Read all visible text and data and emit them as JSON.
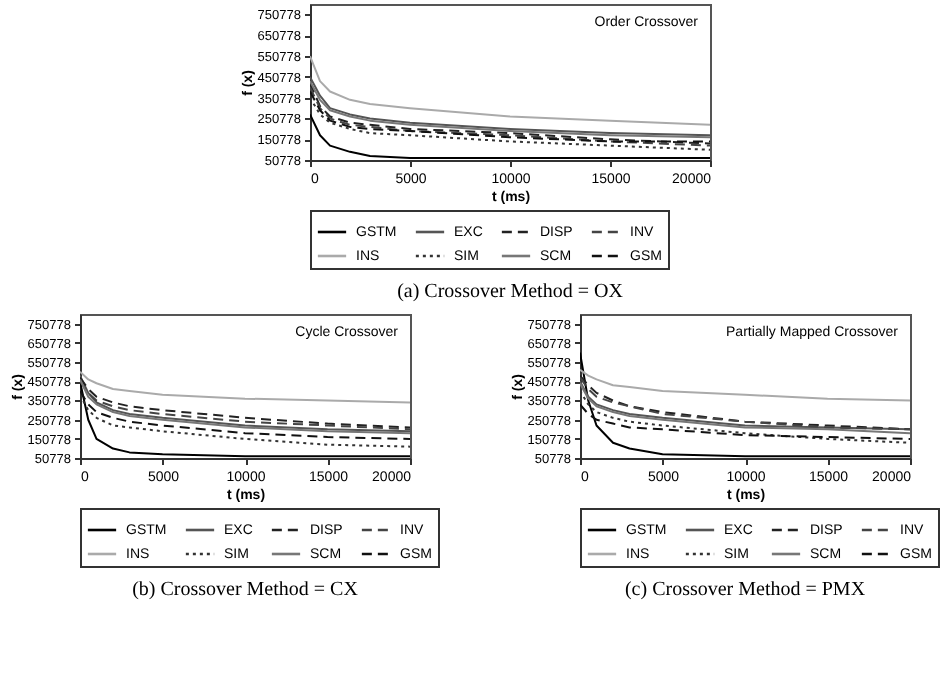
{
  "chart_data": [
    {
      "type": "line",
      "title": "(a) Crossover Method = OX",
      "xlabel": "t (ms)",
      "ylabel": "f (x)",
      "annotations": [
        "Order Crossover"
      ],
      "legend": "bottom",
      "grid": false,
      "marker": "none",
      "x": [
        0,
        500,
        1000,
        2000,
        3000,
        5000,
        10000,
        15000,
        20000
      ],
      "xlim": [
        0,
        20000
      ],
      "xticks": [
        0,
        5000,
        10000,
        15000,
        20000
      ],
      "ylim": [
        50778,
        800778
      ],
      "yticks": [
        50778,
        150778,
        250778,
        350778,
        450778,
        550778,
        650778,
        750778
      ],
      "series": [
        {
          "name": "GSTM",
          "color": "#000000",
          "line_style": "solid",
          "values": [
            270000,
            170000,
            120000,
            90000,
            70000,
            60000,
            60000,
            60000,
            60000
          ]
        },
        {
          "name": "EXC",
          "color": "#555555",
          "line_style": "solid",
          "values": [
            450000,
            360000,
            300000,
            270000,
            250000,
            230000,
            200000,
            180000,
            170000
          ]
        },
        {
          "name": "DISP",
          "color": "#222222",
          "line_style": "dashed",
          "values": [
            420000,
            310000,
            260000,
            230000,
            220000,
            200000,
            180000,
            150000,
            130000
          ]
        },
        {
          "name": "INV",
          "color": "#444444",
          "line_style": "dashed",
          "values": [
            400000,
            300000,
            250000,
            220000,
            210000,
            190000,
            170000,
            140000,
            120000
          ]
        },
        {
          "name": "INS",
          "color": "#aaaaaa",
          "line_style": "solid",
          "values": [
            550000,
            430000,
            380000,
            340000,
            320000,
            300000,
            260000,
            240000,
            220000
          ]
        },
        {
          "name": "SIM",
          "color": "#333333",
          "line_style": "dotted",
          "values": [
            350000,
            270000,
            230000,
            200000,
            180000,
            170000,
            140000,
            120000,
            100000
          ]
        },
        {
          "name": "SCM",
          "color": "#777777",
          "line_style": "solid",
          "values": [
            430000,
            340000,
            290000,
            260000,
            240000,
            220000,
            190000,
            170000,
            160000
          ]
        },
        {
          "name": "GSM",
          "color": "#111111",
          "line_style": "dashed",
          "values": [
            380000,
            290000,
            240000,
            210000,
            200000,
            190000,
            160000,
            140000,
            140000
          ]
        }
      ]
    },
    {
      "type": "line",
      "title": "(b) Crossover Method = CX",
      "xlabel": "t (ms)",
      "ylabel": "f (x)",
      "annotations": [
        "Cycle Crossover"
      ],
      "legend": "bottom",
      "grid": false,
      "marker": "none",
      "x": [
        0,
        500,
        1000,
        2000,
        3000,
        5000,
        10000,
        15000,
        20000
      ],
      "xlim": [
        0,
        20000
      ],
      "xticks": [
        0,
        5000,
        10000,
        15000,
        20000
      ],
      "ylim": [
        50778,
        800778
      ],
      "yticks": [
        50778,
        150778,
        250778,
        350778,
        450778,
        550778,
        650778,
        750778
      ],
      "series": [
        {
          "name": "GSTM",
          "color": "#000000",
          "line_style": "solid",
          "values": [
            450000,
            250000,
            150000,
            100000,
            80000,
            70000,
            60000,
            60000,
            60000
          ]
        },
        {
          "name": "EXC",
          "color": "#555555",
          "line_style": "solid",
          "values": [
            480000,
            390000,
            340000,
            300000,
            280000,
            260000,
            220000,
            200000,
            190000
          ]
        },
        {
          "name": "DISP",
          "color": "#222222",
          "line_style": "dashed",
          "values": [
            470000,
            410000,
            370000,
            340000,
            320000,
            300000,
            260000,
            230000,
            210000
          ]
        },
        {
          "name": "INV",
          "color": "#444444",
          "line_style": "dashed",
          "values": [
            450000,
            390000,
            350000,
            320000,
            300000,
            280000,
            240000,
            220000,
            200000
          ]
        },
        {
          "name": "INS",
          "color": "#aaaaaa",
          "line_style": "solid",
          "values": [
            500000,
            460000,
            440000,
            410000,
            400000,
            380000,
            360000,
            350000,
            340000
          ]
        },
        {
          "name": "SIM",
          "color": "#333333",
          "line_style": "dotted",
          "values": [
            380000,
            300000,
            260000,
            220000,
            210000,
            190000,
            150000,
            120000,
            110000
          ]
        },
        {
          "name": "SCM",
          "color": "#777777",
          "line_style": "solid",
          "values": [
            460000,
            370000,
            330000,
            290000,
            270000,
            250000,
            210000,
            190000,
            180000
          ]
        },
        {
          "name": "GSM",
          "color": "#111111",
          "line_style": "dashed",
          "values": [
            400000,
            330000,
            290000,
            260000,
            240000,
            220000,
            180000,
            160000,
            150000
          ]
        }
      ]
    },
    {
      "type": "line",
      "title": "(c) Crossover Method = PMX",
      "xlabel": "t (ms)",
      "ylabel": "f (x)",
      "annotations": [
        "Partially Mapped Crossover"
      ],
      "legend": "bottom",
      "grid": false,
      "marker": "none",
      "x": [
        0,
        500,
        1000,
        2000,
        3000,
        5000,
        10000,
        15000,
        20000
      ],
      "xlim": [
        0,
        20000
      ],
      "xticks": [
        0,
        5000,
        10000,
        15000,
        20000
      ],
      "ylim": [
        50778,
        800778
      ],
      "yticks": [
        50778,
        150778,
        250778,
        350778,
        450778,
        550778,
        650778,
        750778
      ],
      "series": [
        {
          "name": "GSTM",
          "color": "#000000",
          "line_style": "solid",
          "values": [
            600000,
            350000,
            220000,
            130000,
            100000,
            70000,
            60000,
            60000,
            60000
          ]
        },
        {
          "name": "EXC",
          "color": "#555555",
          "line_style": "solid",
          "values": [
            450000,
            370000,
            330000,
            300000,
            280000,
            260000,
            220000,
            210000,
            200000
          ]
        },
        {
          "name": "DISP",
          "color": "#222222",
          "line_style": "dashed",
          "values": [
            480000,
            430000,
            390000,
            350000,
            320000,
            290000,
            240000,
            220000,
            200000
          ]
        },
        {
          "name": "INV",
          "color": "#444444",
          "line_style": "dashed",
          "values": [
            470000,
            410000,
            370000,
            340000,
            320000,
            280000,
            240000,
            210000,
            200000
          ]
        },
        {
          "name": "INS",
          "color": "#aaaaaa",
          "line_style": "solid",
          "values": [
            510000,
            480000,
            460000,
            430000,
            420000,
            400000,
            380000,
            360000,
            350000
          ]
        },
        {
          "name": "SIM",
          "color": "#333333",
          "line_style": "dotted",
          "values": [
            400000,
            330000,
            290000,
            260000,
            240000,
            220000,
            180000,
            150000,
            130000
          ]
        },
        {
          "name": "SCM",
          "color": "#777777",
          "line_style": "solid",
          "values": [
            440000,
            360000,
            320000,
            290000,
            270000,
            250000,
            210000,
            200000,
            180000
          ]
        },
        {
          "name": "GSM",
          "color": "#111111",
          "line_style": "dashed",
          "values": [
            330000,
            280000,
            250000,
            230000,
            210000,
            200000,
            170000,
            160000,
            150000
          ]
        }
      ]
    }
  ]
}
